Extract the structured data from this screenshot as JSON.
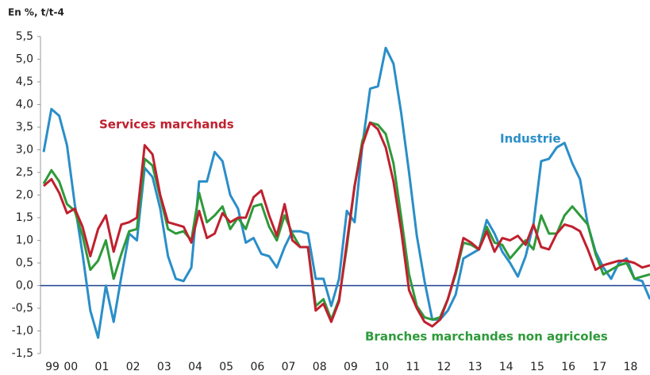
{
  "chart_data": {
    "type": "line",
    "y_axis_label": "En %, t/t-4",
    "categories": [
      "99",
      null,
      null,
      null,
      "00",
      null,
      null,
      null,
      "01",
      null,
      null,
      null,
      "02",
      null,
      null,
      null,
      "03",
      null,
      null,
      null,
      "04",
      null,
      null,
      null,
      "05",
      null,
      null,
      null,
      "06",
      null,
      null,
      null,
      "07",
      null,
      null,
      null,
      "08",
      null,
      null,
      null,
      "09",
      null,
      null,
      null,
      "10",
      null,
      null,
      null,
      "11",
      null,
      null,
      null,
      "12",
      null,
      null,
      null,
      "13",
      null,
      null,
      null,
      "14",
      null,
      null,
      null,
      "15",
      null,
      null,
      null,
      "16",
      null,
      null,
      null,
      "17",
      null,
      null,
      null,
      "18",
      null,
      null
    ],
    "series": [
      {
        "name": "Industrie",
        "color": "#2a8ec8",
        "values": [
          2.95,
          3.9,
          3.75,
          3.1,
          1.8,
          0.7,
          -0.55,
          -1.15,
          0.0,
          -0.8,
          0.2,
          1.15,
          1.0,
          2.6,
          2.4,
          1.7,
          0.65,
          0.15,
          0.1,
          0.4,
          2.3,
          2.3,
          2.95,
          2.75,
          2.0,
          1.7,
          0.95,
          1.05,
          0.7,
          0.65,
          0.4,
          0.85,
          1.2,
          1.2,
          1.15,
          0.15,
          0.15,
          -0.45,
          0.15,
          1.65,
          1.4,
          3.1,
          4.35,
          4.4,
          5.25,
          4.9,
          3.8,
          2.5,
          1.1,
          0.1,
          -0.75,
          -0.75,
          -0.55,
          -0.2,
          0.6,
          0.7,
          0.8,
          1.45,
          1.15,
          0.75,
          0.5,
          0.2,
          0.65,
          1.35,
          2.75,
          2.8,
          3.05,
          3.15,
          2.7,
          2.35,
          1.35,
          0.75,
          0.4,
          0.15,
          0.5,
          0.6,
          0.15,
          0.1,
          -0.3
        ]
      },
      {
        "name": "Branches marchandes non agricoles",
        "color": "#2e9a3a",
        "values": [
          2.25,
          2.55,
          2.3,
          1.8,
          1.65,
          1.1,
          0.35,
          0.55,
          1.0,
          0.15,
          0.7,
          1.2,
          1.25,
          2.8,
          2.65,
          1.95,
          1.25,
          1.15,
          1.2,
          1.0,
          2.05,
          1.4,
          1.55,
          1.75,
          1.25,
          1.5,
          1.25,
          1.75,
          1.8,
          1.3,
          1.0,
          1.55,
          1.15,
          0.85,
          0.85,
          -0.45,
          -0.3,
          -0.75,
          -0.3,
          0.85,
          2.2,
          3.2,
          3.6,
          3.55,
          3.35,
          2.7,
          1.5,
          0.25,
          -0.45,
          -0.7,
          -0.75,
          -0.7,
          -0.3,
          0.25,
          0.95,
          0.9,
          0.8,
          1.3,
          0.95,
          0.9,
          0.6,
          0.8,
          1.0,
          0.8,
          1.55,
          1.15,
          1.15,
          1.55,
          1.75,
          1.55,
          1.35,
          0.7,
          0.25,
          0.35,
          0.45,
          0.5,
          0.15,
          0.2,
          0.25
        ]
      },
      {
        "name": "Services marchands",
        "color": "#c0202f",
        "values": [
          2.2,
          2.35,
          2.05,
          1.6,
          1.7,
          1.3,
          0.65,
          1.25,
          1.55,
          0.75,
          1.35,
          1.4,
          1.5,
          3.1,
          2.9,
          2.0,
          1.4,
          1.35,
          1.3,
          0.95,
          1.65,
          1.05,
          1.15,
          1.6,
          1.4,
          1.5,
          1.5,
          1.95,
          2.1,
          1.55,
          1.1,
          1.8,
          1.0,
          0.85,
          0.85,
          -0.55,
          -0.4,
          -0.8,
          -0.35,
          0.95,
          2.2,
          3.1,
          3.6,
          3.45,
          3.05,
          2.3,
          1.2,
          -0.1,
          -0.5,
          -0.8,
          -0.9,
          -0.75,
          -0.3,
          0.3,
          1.05,
          0.95,
          0.8,
          1.2,
          0.75,
          1.05,
          1.0,
          1.1,
          0.9,
          1.35,
          0.85,
          0.8,
          1.15,
          1.35,
          1.3,
          1.2,
          0.8,
          0.35,
          0.45,
          0.5,
          0.55,
          0.55,
          0.5,
          0.4,
          0.45
        ]
      }
    ],
    "ylim": [
      -1.5,
      5.5
    ],
    "yticks": [
      {
        "value": -1.5,
        "label": "-1,5"
      },
      {
        "value": -1,
        "label": "-1,0"
      },
      {
        "value": -0.5,
        "label": "-0,5"
      },
      {
        "value": 0,
        "label": "0,0"
      },
      {
        "value": 0.5,
        "label": "0,5"
      },
      {
        "value": 1,
        "label": "1,0"
      },
      {
        "value": 1.5,
        "label": "1,5"
      },
      {
        "value": 2,
        "label": "2,0"
      },
      {
        "value": 2.5,
        "label": "2,5"
      },
      {
        "value": 3,
        "label": "3,0"
      },
      {
        "value": 3.5,
        "label": "3,5"
      },
      {
        "value": 4,
        "label": "4,0"
      },
      {
        "value": 4.5,
        "label": "4,5"
      },
      {
        "value": 5,
        "label": "5,0"
      },
      {
        "value": 5.5,
        "label": "5,5"
      }
    ],
    "zero_line_color": "#1f3f8f"
  }
}
